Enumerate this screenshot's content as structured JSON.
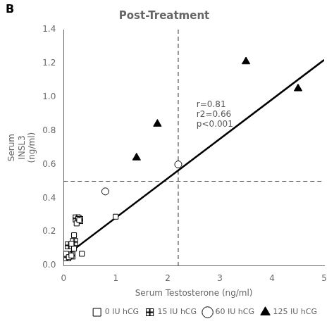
{
  "chart_data": {
    "type": "scatter",
    "title": "Post-Treatment",
    "xlabel": "Serum Testosterone (ng/ml)",
    "ylabel": "Serum\nINSL3\n(ng/ml)",
    "xlim": [
      0,
      5
    ],
    "ylim": [
      0,
      1.4
    ],
    "xticks": [
      0,
      1,
      2,
      3,
      4,
      5
    ],
    "yticks": [
      {
        "value": 0,
        "label": "0.0"
      },
      0.2,
      0.4,
      0.6,
      0.8,
      {
        "value": 1.0,
        "label": "1.0"
      },
      1.2,
      1.4
    ],
    "grid": false,
    "legend": "lower right",
    "reference_lines": [
      {
        "axis": "y",
        "value": 0.5,
        "color": "#555555",
        "line_style": "dashed"
      },
      {
        "axis": "x",
        "value": 2.2,
        "color": "#555555",
        "line_style": "dashed"
      }
    ],
    "annotations": [
      {
        "text": "B"
      },
      {
        "text": "r=0.81\nr2=0.66\np<0.001",
        "x": 2.55,
        "y": 0.98,
        "color": "#555555"
      }
    ],
    "series": [
      {
        "type": "line",
        "color": "#000000",
        "x": [
          0.0,
          5.0
        ],
        "values": [
          0.05,
          1.22
        ]
      },
      {
        "name": "0 IU hCG",
        "type": "scatter",
        "marker": "open_square",
        "color": "#000000",
        "x": [
          0.05,
          0.1,
          0.15,
          0.2,
          0.25,
          0.3,
          0.35,
          0.15,
          0.2,
          1.0
        ],
        "values": [
          0.07,
          0.05,
          0.13,
          0.18,
          0.25,
          0.27,
          0.07,
          0.06,
          0.1,
          0.29
        ]
      },
      {
        "name": "15 IU hCG",
        "type": "scatter",
        "marker": "crossed_square",
        "color": "#000000",
        "x": [
          0.1,
          0.2,
          0.25,
          0.3,
          0.15,
          0.07
        ],
        "values": [
          0.12,
          0.14,
          0.28,
          0.27,
          0.06,
          0.05
        ]
      },
      {
        "name": "60 IU hCG",
        "type": "scatter",
        "marker": "open_circle",
        "color": "#000000",
        "x": [
          0.25,
          0.3,
          0.8,
          2.2
        ],
        "values": [
          0.28,
          0.28,
          0.44,
          0.6
        ]
      },
      {
        "name": "125 IU hCG",
        "type": "scatter",
        "marker": "filled_triangle",
        "color": "#000000",
        "x": [
          1.4,
          1.8,
          3.5,
          4.5
        ],
        "values": [
          0.64,
          0.84,
          1.21,
          1.05
        ]
      }
    ]
  }
}
